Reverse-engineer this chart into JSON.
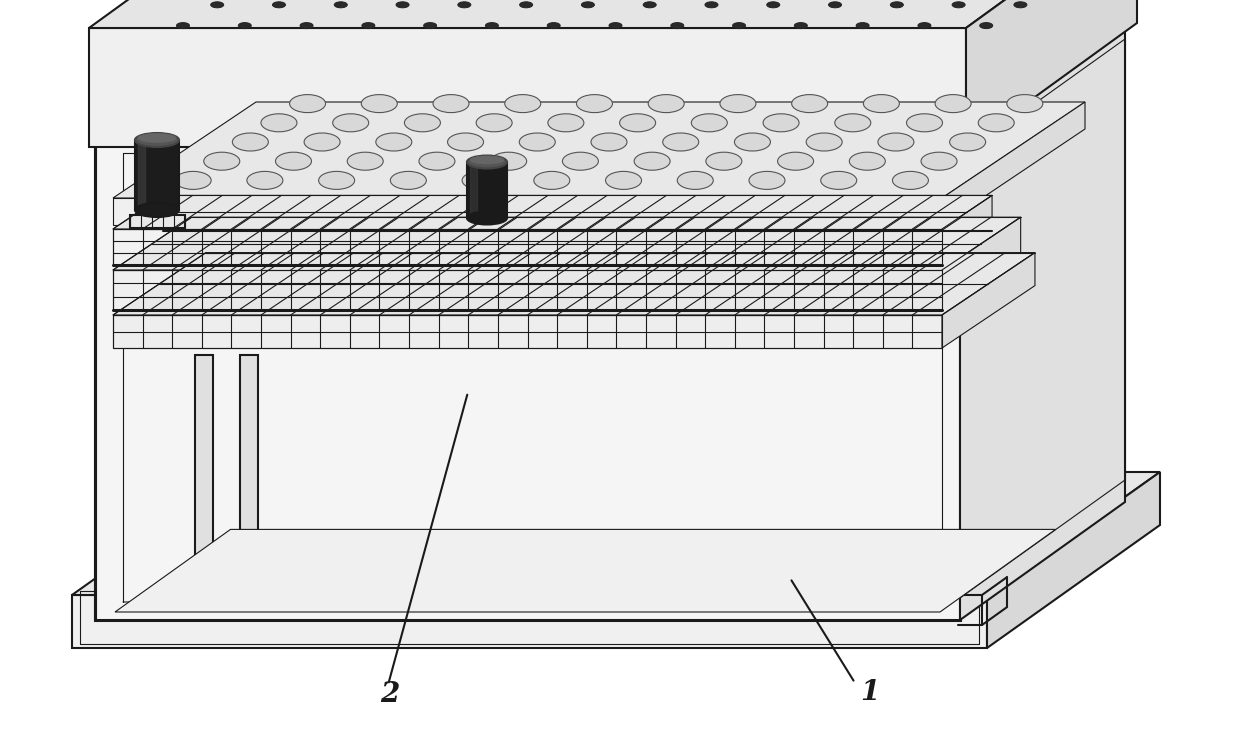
{
  "bg_color": "#ffffff",
  "line_color": "#1a1a1a",
  "lw_main": 1.5,
  "lw_thin": 0.8,
  "lw_thick": 2.2,
  "label1": "1",
  "label2": "2",
  "label_fontsize": 20,
  "fig_width": 12.4,
  "fig_height": 7.31,
  "dpi": 100
}
